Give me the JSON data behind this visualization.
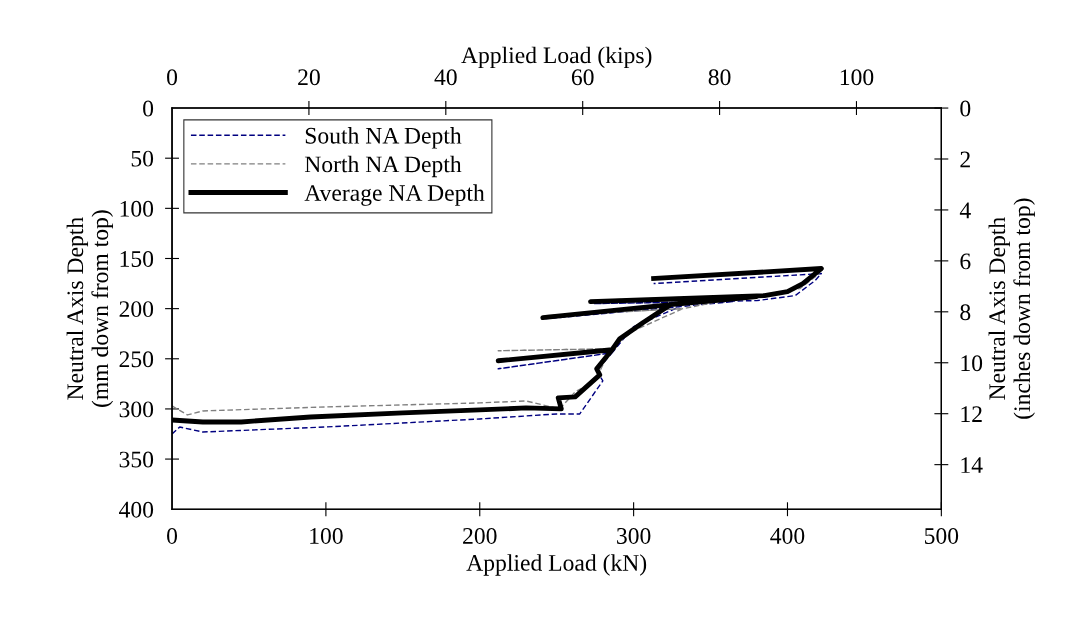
{
  "chart_data": {
    "type": "line",
    "xlabel": "Applied Load (kN)",
    "x2label": "Applied Load (kips)",
    "ylabel": "Neutral Axis Depth\n(mm down from top)",
    "y2label": "Neutral Axis Depth\n(inches down from top)",
    "xlim": [
      0,
      500
    ],
    "xticks": [
      0,
      100,
      200,
      300,
      400,
      500
    ],
    "x2lim": [
      0,
      112.4
    ],
    "x2ticks": [
      0,
      20,
      40,
      60,
      80,
      100
    ],
    "ylim": [
      400,
      0
    ],
    "yticks": [
      0,
      50,
      100,
      150,
      200,
      250,
      300,
      350,
      400
    ],
    "y2lim": [
      15.75,
      0
    ],
    "y2ticks": [
      0,
      2,
      4,
      6,
      8,
      10,
      12,
      14
    ],
    "grid": false,
    "legend": "top left",
    "marker": "none",
    "series": [
      {
        "name": "South NA Depth",
        "color": "#000080",
        "line_style": "dashed",
        "x": [
          0,
          5,
          20,
          100,
          200,
          250,
          265,
          280,
          276,
          286,
          212,
          286,
          300,
          330,
          243,
          330,
          365,
          274,
          380,
          405,
          418,
          422,
          313
        ],
        "values": [
          325,
          318,
          323,
          318,
          310,
          305,
          305,
          272,
          262,
          244,
          260,
          244,
          218,
          198,
          210,
          198,
          193,
          195,
          192,
          187,
          172,
          165,
          175
        ]
      },
      {
        "name": "North NA Depth",
        "color": "#808080",
        "line_style": "dashed",
        "x": [
          0,
          10,
          20,
          100,
          200,
          230,
          252,
          262,
          275,
          285,
          212,
          285,
          300,
          332,
          243,
          332,
          365,
          272,
          385,
          408,
          420,
          422,
          313
        ],
        "values": [
          297,
          306,
          302,
          298,
          294,
          292,
          300,
          283,
          272,
          240,
          242,
          240,
          222,
          200,
          207,
          200,
          190,
          192,
          186,
          180,
          166,
          160,
          169
        ]
      },
      {
        "name": "Average NA Depth",
        "color": "#000000",
        "line_style": "solid",
        "x": [
          0,
          20,
          45,
          90,
          150,
          200,
          230,
          253,
          251,
          262,
          278,
          276,
          286,
          212,
          286,
          291,
          306,
          324,
          241,
          324,
          360,
          380,
          272,
          385,
          400,
          410,
          418,
          422,
          313
        ],
        "values": [
          311,
          313,
          313,
          308,
          304,
          301,
          299,
          300,
          289,
          288,
          266,
          260,
          241,
          252,
          241,
          230,
          214,
          196,
          209,
          196,
          191,
          188,
          193,
          187,
          183,
          175,
          165,
          160,
          170
        ]
      }
    ]
  }
}
